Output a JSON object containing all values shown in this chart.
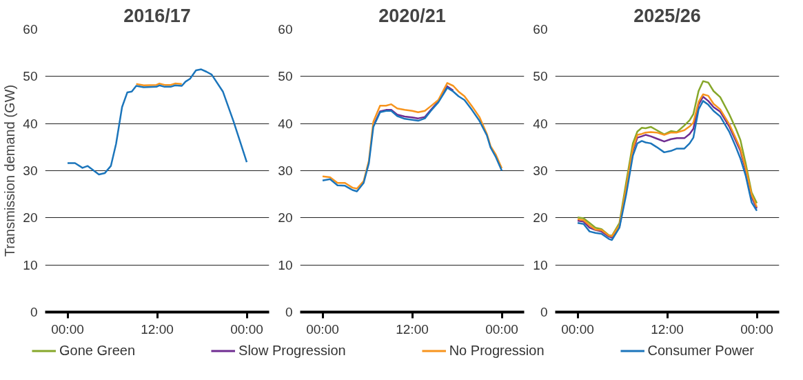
{
  "chart_data": [
    {
      "type": "line",
      "title": "2016/17",
      "ylabel": "Transmission demand (GW)",
      "xlim": [
        -3,
        27
      ],
      "ylim": [
        0,
        60
      ],
      "xticks": [
        {
          "value": 0,
          "label": "00:00"
        },
        {
          "value": 12,
          "label": "12:00"
        },
        {
          "value": 24,
          "label": "00:00"
        }
      ],
      "yticks": [
        0,
        10,
        20,
        30,
        40,
        50,
        60
      ],
      "grid": "y",
      "marker": "none",
      "line_style": "solid",
      "x": [
        0,
        1,
        2,
        2.7,
        4.2,
        5,
        5.8,
        6.5,
        7.3,
        8,
        8.6,
        9.2,
        10.2,
        11.9,
        12.3,
        13,
        13.8,
        14.4,
        15.3,
        15.8,
        16.4,
        17.2,
        17.9,
        18.6,
        19.3,
        20.8,
        22.2,
        22.9,
        24
      ],
      "series": [
        {
          "color": "#f7941d",
          "values": [
            null,
            null,
            null,
            null,
            null,
            null,
            null,
            null,
            null,
            null,
            null,
            48.4,
            48.1,
            48.2,
            48.5,
            48.2,
            48.2,
            48.5,
            48.4,
            null,
            null,
            null,
            null,
            null,
            null,
            null,
            null,
            null,
            null
          ]
        },
        {
          "color": "#1b75bb",
          "values": [
            31.6,
            31.6,
            30.6,
            31,
            29.2,
            29.5,
            31,
            35.7,
            43.5,
            46.6,
            46.8,
            48,
            47.7,
            47.8,
            48.1,
            47.8,
            47.8,
            48.1,
            48,
            48.9,
            49.5,
            51.3,
            51.5,
            51,
            50.4,
            46.8,
            40.6,
            37.2,
            31.8
          ]
        }
      ]
    },
    {
      "type": "line",
      "title": "2020/21",
      "xlim": [
        -3,
        27
      ],
      "ylim": [
        0,
        60
      ],
      "xticks": [
        {
          "value": 0,
          "label": "00:00"
        },
        {
          "value": 12,
          "label": "12:00"
        },
        {
          "value": 24,
          "label": "00:00"
        }
      ],
      "yticks": [
        0,
        10,
        20,
        30,
        40,
        50,
        60
      ],
      "grid": "y",
      "marker": "none",
      "line_style": "solid",
      "x": [
        0,
        1,
        2,
        3,
        4,
        4.6,
        5.5,
        6.2,
        6.8,
        7.7,
        8.5,
        9.2,
        10,
        11,
        12,
        12.8,
        13.7,
        14.5,
        15.5,
        16.7,
        17.5,
        18.2,
        19,
        20,
        21,
        22,
        22.5,
        23.2,
        24
      ],
      "series": [
        {
          "color": "#6f2c91",
          "values": [
            null,
            null,
            null,
            null,
            null,
            null,
            null,
            null,
            39.5,
            42.6,
            42.9,
            42.9,
            41.9,
            41.5,
            41.3,
            41.1,
            41.4,
            42.9,
            44.7,
            47.9,
            47,
            null,
            null,
            null,
            null,
            null,
            null,
            null,
            null
          ]
        },
        {
          "color": "#f7941d",
          "values": [
            28.8,
            28.6,
            27.4,
            27.4,
            26.4,
            26.2,
            27.8,
            32.1,
            40.4,
            43.8,
            43.8,
            44.1,
            43.2,
            42.9,
            42.7,
            42.4,
            42.7,
            43.7,
            45,
            48.6,
            48,
            46.8,
            45.8,
            43.7,
            41.4,
            37.8,
            35.2,
            33.4,
            30.5
          ]
        },
        {
          "color": "#1b75bb",
          "values": [
            27.9,
            28.2,
            26.9,
            26.8,
            25.9,
            25.6,
            27.4,
            31.6,
            39.3,
            42.4,
            42.7,
            42.7,
            41.6,
            41,
            40.8,
            40.6,
            41.1,
            42.7,
            44.5,
            47.6,
            46.8,
            45.8,
            45,
            42.9,
            40.6,
            37.5,
            34.9,
            32.9,
            30
          ]
        }
      ]
    },
    {
      "type": "line",
      "title": "2025/26",
      "xlim": [
        -3,
        27
      ],
      "ylim": [
        0,
        60
      ],
      "xticks": [
        {
          "value": 0,
          "label": "00:00"
        },
        {
          "value": 12,
          "label": "12:00"
        },
        {
          "value": 24,
          "label": "00:00"
        }
      ],
      "yticks": [
        0,
        10,
        20,
        30,
        40,
        50,
        60
      ],
      "grid": "y",
      "legend": "bottom",
      "marker": "none",
      "line_style": "solid",
      "x": [
        0,
        0.8,
        1.6,
        2.4,
        3.2,
        4.2,
        4.6,
        5.6,
        6.5,
        7.4,
        8,
        8.6,
        9.1,
        9.8,
        10.6,
        11.6,
        12.5,
        13.3,
        14.3,
        15,
        15.5,
        16.2,
        16.8,
        17.5,
        18.2,
        19.1,
        20.3,
        21.2,
        21.8,
        22.5,
        23.3,
        24
      ],
      "series": [
        {
          "name": "Gone Green",
          "color": "#86a72a",
          "values": [
            20.1,
            19.9,
            18.9,
            17.9,
            17.6,
            16.3,
            16.2,
            18.9,
            27.5,
            35.8,
            38.3,
            39.1,
            39,
            39.3,
            38.6,
            37.7,
            38.4,
            38.2,
            39.6,
            40.7,
            42,
            46.9,
            49,
            48.7,
            46.9,
            45.6,
            42,
            38.9,
            36.5,
            31.6,
            25.4,
            23.1
          ]
        },
        {
          "name": "Slow Progression",
          "color": "#6f2c91",
          "values": [
            19.4,
            19.2,
            17.9,
            17.4,
            17.1,
            16,
            15.8,
            18.1,
            25.9,
            34.2,
            37,
            37.3,
            37.6,
            37.3,
            36.8,
            36.2,
            36.7,
            36.9,
            36.9,
            37.8,
            38.9,
            44,
            45.7,
            44.8,
            43.5,
            42.5,
            39.4,
            36.3,
            34.2,
            30.1,
            24.4,
            22
          ]
        },
        {
          "name": "No Progression",
          "color": "#f7941d",
          "values": [
            19.7,
            19.5,
            18.4,
            17.5,
            17.4,
            16.2,
            16.1,
            18.4,
            26.4,
            34.7,
            37.6,
            37.8,
            38.1,
            38.2,
            38.1,
            37.6,
            38.1,
            38.1,
            38.6,
            39.4,
            40.2,
            44.6,
            46.2,
            45.9,
            44.2,
            43,
            39.9,
            36.8,
            34.7,
            30.6,
            24.9,
            22.3
          ]
        },
        {
          "name": "Consumer Power",
          "color": "#1b75bb",
          "values": [
            18.9,
            18.7,
            17.1,
            16.8,
            16.6,
            15.5,
            15.3,
            17.9,
            24.9,
            33.2,
            35.8,
            36.3,
            36,
            35.8,
            35,
            33.9,
            34.2,
            34.7,
            34.7,
            35.8,
            37,
            43,
            44.8,
            44,
            42.7,
            41.5,
            38.3,
            35,
            32.6,
            29,
            23.3,
            21.5
          ]
        }
      ]
    }
  ]
}
